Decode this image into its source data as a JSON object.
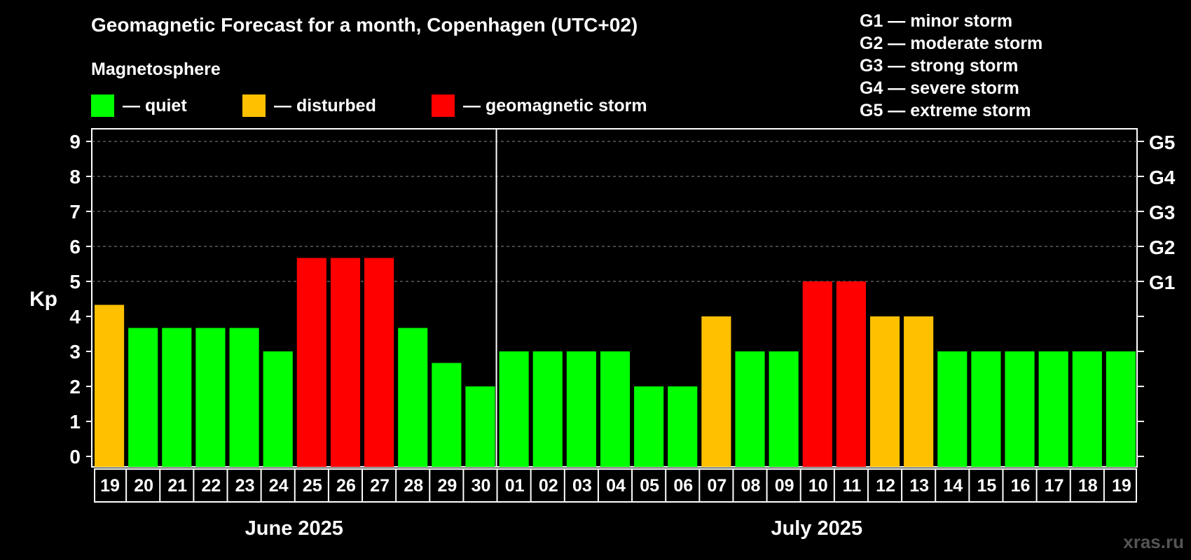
{
  "header": {
    "title": "Geomagnetic Forecast for a month, Copenhagen (UTC+02)",
    "subtitle": "Magnetosphere"
  },
  "legend": [
    {
      "label": "— quiet",
      "color": "#00ff00"
    },
    {
      "label": "— disturbed",
      "color": "#ffc000"
    },
    {
      "label": "— geomagnetic storm",
      "color": "#ff0000"
    }
  ],
  "storm_scale": [
    "G1 — minor storm",
    "G2 — moderate storm",
    "G3 — strong storm",
    "G4 — severe storm",
    "G5 — extreme storm"
  ],
  "watermark": "xras.ru",
  "chart_data": {
    "type": "bar",
    "ylabel": "Kp",
    "ylim": [
      0,
      9
    ],
    "yticks": [
      "0",
      "1",
      "2",
      "3",
      "4",
      "5",
      "6",
      "7",
      "8",
      "9"
    ],
    "right_axis_labels": [
      {
        "kp": 5,
        "label": "G1"
      },
      {
        "kp": 6,
        "label": "G2"
      },
      {
        "kp": 7,
        "label": "G3"
      },
      {
        "kp": 8,
        "label": "G4"
      },
      {
        "kp": 9,
        "label": "G5"
      }
    ],
    "grid": "dashed horizontal at 5–9",
    "categories": [
      "19",
      "20",
      "21",
      "22",
      "23",
      "24",
      "25",
      "26",
      "27",
      "28",
      "29",
      "30",
      "01",
      "02",
      "03",
      "04",
      "05",
      "06",
      "07",
      "08",
      "09",
      "10",
      "11",
      "12",
      "13",
      "14",
      "15",
      "16",
      "17",
      "18",
      "19"
    ],
    "values": [
      4.33,
      3.67,
      3.67,
      3.67,
      3.67,
      3.0,
      5.67,
      5.67,
      5.67,
      3.67,
      2.67,
      2.0,
      3.0,
      3.0,
      3.0,
      3.0,
      2.0,
      2.0,
      4.0,
      3.0,
      3.0,
      5.0,
      5.0,
      4.0,
      4.0,
      3.0,
      3.0,
      3.0,
      3.0,
      3.0,
      3.0
    ],
    "status": [
      "disturbed",
      "quiet",
      "quiet",
      "quiet",
      "quiet",
      "quiet",
      "storm",
      "storm",
      "storm",
      "quiet",
      "quiet",
      "quiet",
      "quiet",
      "quiet",
      "quiet",
      "quiet",
      "quiet",
      "quiet",
      "disturbed",
      "quiet",
      "quiet",
      "storm",
      "storm",
      "disturbed",
      "disturbed",
      "quiet",
      "quiet",
      "quiet",
      "quiet",
      "quiet",
      "quiet"
    ],
    "colors": {
      "quiet": "#00ff00",
      "disturbed": "#ffc000",
      "storm": "#ff0000"
    },
    "month_groups": [
      {
        "label": "June 2025",
        "count": 12
      },
      {
        "label": "July 2025",
        "count": 19
      }
    ]
  }
}
